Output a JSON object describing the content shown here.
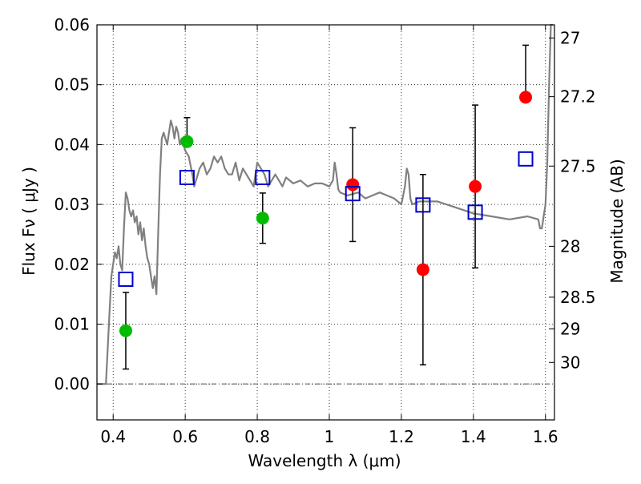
{
  "chart_data": {
    "type": "scatter",
    "xlabel": "Wavelength  λ (μm)",
    "ylabel": "Flux  Fν  ( μJy )",
    "y2label": "Magnitude (AB)",
    "xlim": [
      0.355,
      1.625
    ],
    "ylim": [
      -0.006,
      0.06
    ],
    "grid": true,
    "x_ticks": [
      0.4,
      0.6,
      0.8,
      1.0,
      1.2,
      1.4,
      1.6
    ],
    "x_tick_labels": [
      "0.4",
      "0.6",
      "0.8",
      "1",
      "1.2",
      "1.4",
      "1.6"
    ],
    "y_ticks": [
      0.0,
      0.01,
      0.02,
      0.03,
      0.04,
      0.05,
      0.06
    ],
    "y_tick_labels": [
      "0.00",
      "0.01",
      "0.02",
      "0.03",
      "0.04",
      "0.05",
      "0.06"
    ],
    "y2_ticks": [
      {
        "label": "27",
        "flux": 0.0578
      },
      {
        "label": "27.2",
        "flux": 0.048
      },
      {
        "label": "27.5",
        "flux": 0.0364
      },
      {
        "label": "28",
        "flux": 0.023
      },
      {
        "label": "28.5",
        "flux": 0.0145
      },
      {
        "label": "29",
        "flux": 0.0092
      },
      {
        "label": "30",
        "flux": 0.0036
      }
    ],
    "colors": {
      "model": "#808080",
      "green": "#00bb00",
      "red": "#ff0000",
      "blue": "#0000cc",
      "errorbar": "#000000",
      "zero_line": "#555555"
    },
    "model_sed": {
      "x": [
        0.355,
        0.38,
        0.39,
        0.395,
        0.4,
        0.405,
        0.41,
        0.415,
        0.42,
        0.425,
        0.43,
        0.435,
        0.44,
        0.445,
        0.45,
        0.455,
        0.46,
        0.465,
        0.47,
        0.475,
        0.48,
        0.485,
        0.49,
        0.495,
        0.5,
        0.505,
        0.51,
        0.515,
        0.52,
        0.525,
        0.53,
        0.535,
        0.54,
        0.545,
        0.55,
        0.555,
        0.56,
        0.565,
        0.57,
        0.575,
        0.58,
        0.585,
        0.59,
        0.595,
        0.6,
        0.61,
        0.62,
        0.625,
        0.63,
        0.64,
        0.65,
        0.66,
        0.67,
        0.68,
        0.69,
        0.7,
        0.71,
        0.72,
        0.73,
        0.74,
        0.75,
        0.76,
        0.77,
        0.78,
        0.79,
        0.8,
        0.81,
        0.82,
        0.83,
        0.84,
        0.85,
        0.86,
        0.87,
        0.88,
        0.9,
        0.92,
        0.94,
        0.96,
        0.98,
        1.0,
        1.01,
        1.015,
        1.02,
        1.025,
        1.03,
        1.05,
        1.08,
        1.1,
        1.12,
        1.14,
        1.16,
        1.18,
        1.2,
        1.21,
        1.215,
        1.22,
        1.225,
        1.23,
        1.25,
        1.3,
        1.35,
        1.4,
        1.45,
        1.5,
        1.55,
        1.58,
        1.585,
        1.59,
        1.595,
        1.6,
        1.605,
        1.61,
        1.615,
        1.62
      ],
      "y": [
        0.0,
        0.0,
        0.012,
        0.018,
        0.02,
        0.022,
        0.021,
        0.023,
        0.02,
        0.019,
        0.026,
        0.032,
        0.031,
        0.029,
        0.028,
        0.029,
        0.027,
        0.028,
        0.025,
        0.027,
        0.024,
        0.026,
        0.023,
        0.021,
        0.02,
        0.018,
        0.016,
        0.018,
        0.015,
        0.025,
        0.035,
        0.041,
        0.042,
        0.041,
        0.04,
        0.042,
        0.044,
        0.043,
        0.041,
        0.043,
        0.042,
        0.04,
        0.041,
        0.04,
        0.039,
        0.038,
        0.035,
        0.033,
        0.034,
        0.036,
        0.037,
        0.035,
        0.036,
        0.038,
        0.037,
        0.038,
        0.036,
        0.035,
        0.035,
        0.037,
        0.034,
        0.036,
        0.035,
        0.034,
        0.033,
        0.037,
        0.036,
        0.035,
        0.033,
        0.034,
        0.035,
        0.034,
        0.033,
        0.0345,
        0.0335,
        0.034,
        0.033,
        0.0335,
        0.0335,
        0.033,
        0.034,
        0.037,
        0.035,
        0.0325,
        0.032,
        0.0315,
        0.032,
        0.031,
        0.0315,
        0.032,
        0.0315,
        0.031,
        0.03,
        0.033,
        0.036,
        0.035,
        0.031,
        0.03,
        0.0305,
        0.0305,
        0.0295,
        0.0285,
        0.028,
        0.0275,
        0.028,
        0.0275,
        0.026,
        0.026,
        0.028,
        0.03,
        0.037,
        0.05,
        0.06,
        0.061
      ]
    },
    "series": [
      {
        "color_key": "green",
        "marker": "circle",
        "x": [
          0.435,
          0.605,
          0.815
        ],
        "y": [
          0.0089,
          0.0405,
          0.0277
        ],
        "err_low": [
          0.0064,
          0.0,
          0.0042
        ],
        "err_high": [
          0.0064,
          0.004,
          0.0042
        ]
      },
      {
        "color_key": "red",
        "marker": "circle",
        "x": [
          1.065,
          1.26,
          1.405,
          1.545
        ],
        "y": [
          0.0333,
          0.0191,
          0.033,
          0.0479
        ],
        "err_low": [
          0.0095,
          0.0159,
          0.0136,
          0.0
        ],
        "err_high": [
          0.0095,
          0.0159,
          0.0136,
          0.0087
        ]
      },
      {
        "color_key": "blue",
        "marker": "open-square",
        "x": [
          0.435,
          0.605,
          0.815,
          1.065,
          1.26,
          1.405,
          1.545
        ],
        "y": [
          0.0175,
          0.0345,
          0.0345,
          0.0318,
          0.0299,
          0.0287,
          0.0376
        ]
      }
    ]
  }
}
